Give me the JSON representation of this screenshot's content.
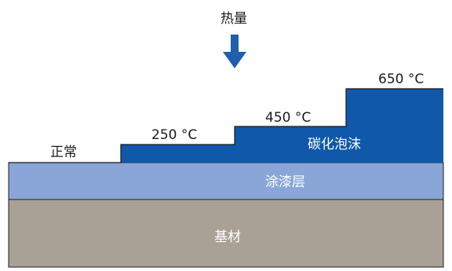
{
  "heat_label": "热量",
  "state_labels": {
    "normal": "正常",
    "t250": "250 °C",
    "t450": "450 °C",
    "t650": "650 °C"
  },
  "layers": {
    "char_foam": "碳化泡沫",
    "paint": "涂漆层",
    "substrate": "基材"
  },
  "colors": {
    "arrow": "#1f5fae",
    "char_foam": "#0f58aa",
    "paint": "#8aa6d8",
    "substrate": "#aaa196",
    "outline": "#1a1a1a"
  }
}
